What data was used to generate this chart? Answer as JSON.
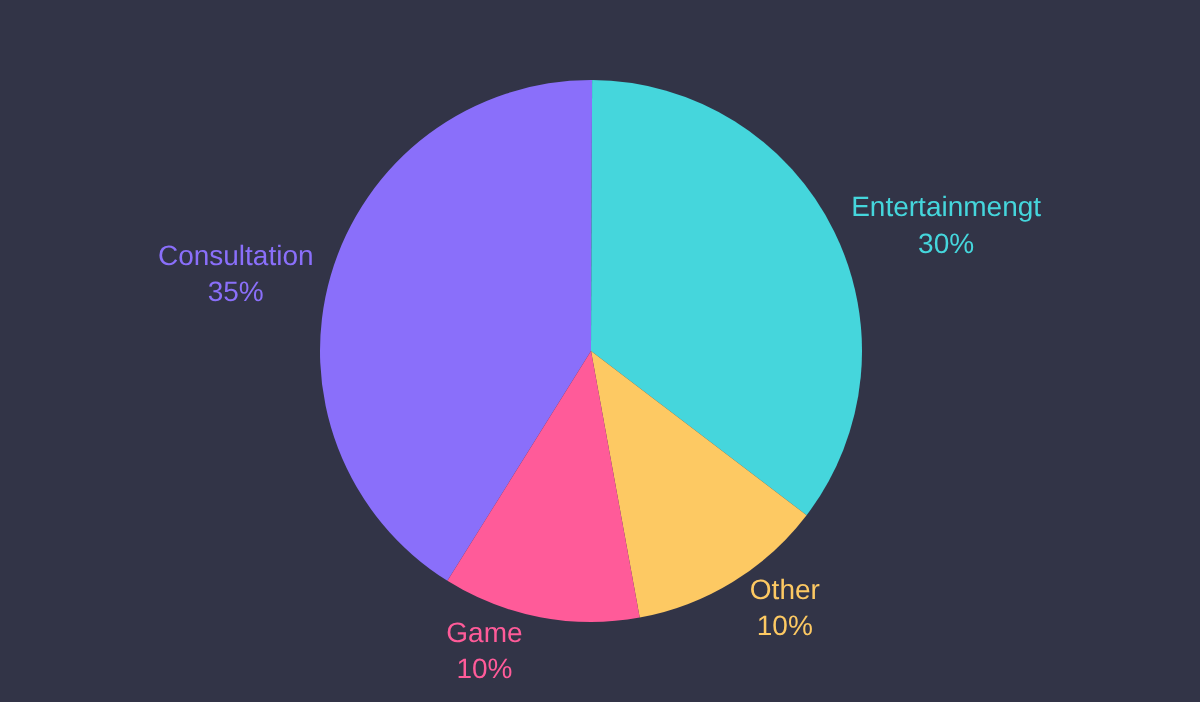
{
  "chart_data": {
    "type": "pie",
    "categories": [
      "Consultation",
      "Entertainmengt",
      "Other",
      "Game"
    ],
    "values": [
      35,
      30,
      10,
      10
    ],
    "colors": [
      "#8a6ffa",
      "#45d6dc",
      "#fdc963",
      "#ff5b99"
    ],
    "value_labels": [
      "35%",
      "30%",
      "10%",
      "10%"
    ],
    "legend": false
  }
}
